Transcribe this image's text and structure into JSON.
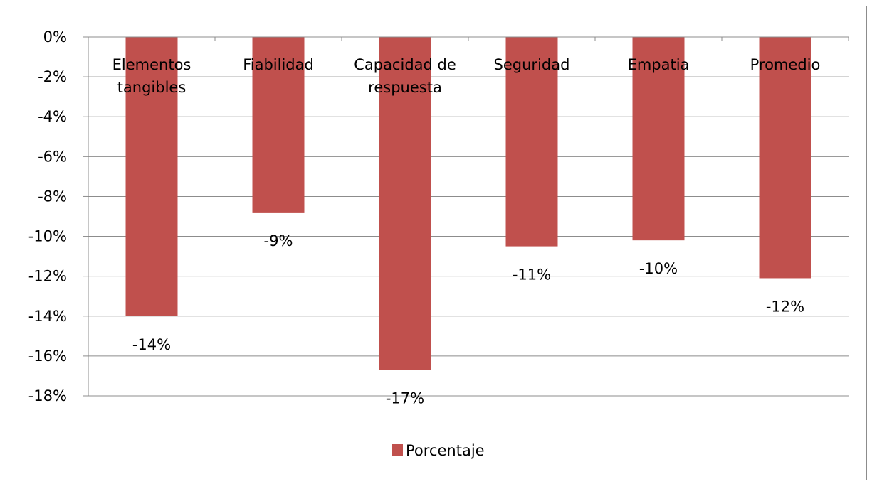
{
  "chart_data": {
    "type": "bar",
    "categories": [
      "Elementos tangibles",
      "Fiabilidad",
      "Capacidad de respuesta",
      "Seguridad",
      "Empatia",
      "Promedio"
    ],
    "category_label_lines": [
      [
        "Elementos",
        "tangibles"
      ],
      [
        "Fiabilidad"
      ],
      [
        "Capacidad de",
        "respuesta"
      ],
      [
        "Seguridad"
      ],
      [
        "Empatia"
      ],
      [
        "Promedio"
      ]
    ],
    "series": [
      {
        "name": "Porcentaje",
        "values": [
          -14,
          -8.8,
          -16.7,
          -10.5,
          -10.2,
          -12.1
        ],
        "data_labels": [
          "-14%",
          "-9%",
          "-17%",
          "-11%",
          "-10%",
          "-12%"
        ],
        "color": "#c0504d"
      }
    ],
    "ylim": [
      -18,
      0
    ],
    "y_ticks": [
      0,
      -2,
      -4,
      -6,
      -8,
      -10,
      -12,
      -14,
      -16,
      -18
    ],
    "y_tick_labels": [
      "0%",
      "-2%",
      "-4%",
      "-6%",
      "-8%",
      "-10%",
      "-12%",
      "-14%",
      "-16%",
      "-18%"
    ],
    "grid": true,
    "legend_position": "bottom",
    "title": "",
    "xlabel": "",
    "ylabel": ""
  }
}
